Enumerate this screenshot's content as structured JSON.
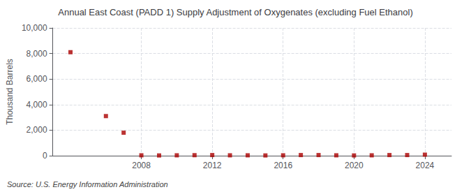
{
  "chart_data": {
    "type": "scatter",
    "title": "Annual East Coast (PADD 1) Supply Adjustment of Oxygenates (excluding Fuel Ethanol)",
    "ylabel": "Thousand Barrels",
    "annotations": [
      "Source: U.S. Energy Information Administration"
    ],
    "x": [
      2004,
      2006,
      2007,
      2008,
      2009,
      2010,
      2011,
      2012,
      2013,
      2014,
      2015,
      2016,
      2017,
      2018,
      2019,
      2020,
      2021,
      2022,
      2023,
      2024
    ],
    "values": [
      8100,
      3100,
      1800,
      30,
      20,
      30,
      40,
      50,
      30,
      30,
      20,
      30,
      50,
      50,
      30,
      20,
      30,
      50,
      50,
      80
    ],
    "color": "#aa0000",
    "marker": "square",
    "xlim": [
      2003,
      2025.5
    ],
    "xticks": [
      2008,
      2012,
      2016,
      2020,
      2024
    ],
    "ylim": [
      0,
      10000
    ],
    "yticks": [
      0,
      {
        "value": 2000,
        "label": "2,000"
      },
      {
        "value": 4000,
        "label": "4,000"
      },
      {
        "value": 6000,
        "label": "6,000"
      },
      {
        "value": 8000,
        "label": "8,000"
      },
      {
        "value": 10000,
        "label": "10,000"
      }
    ],
    "grid": true
  }
}
